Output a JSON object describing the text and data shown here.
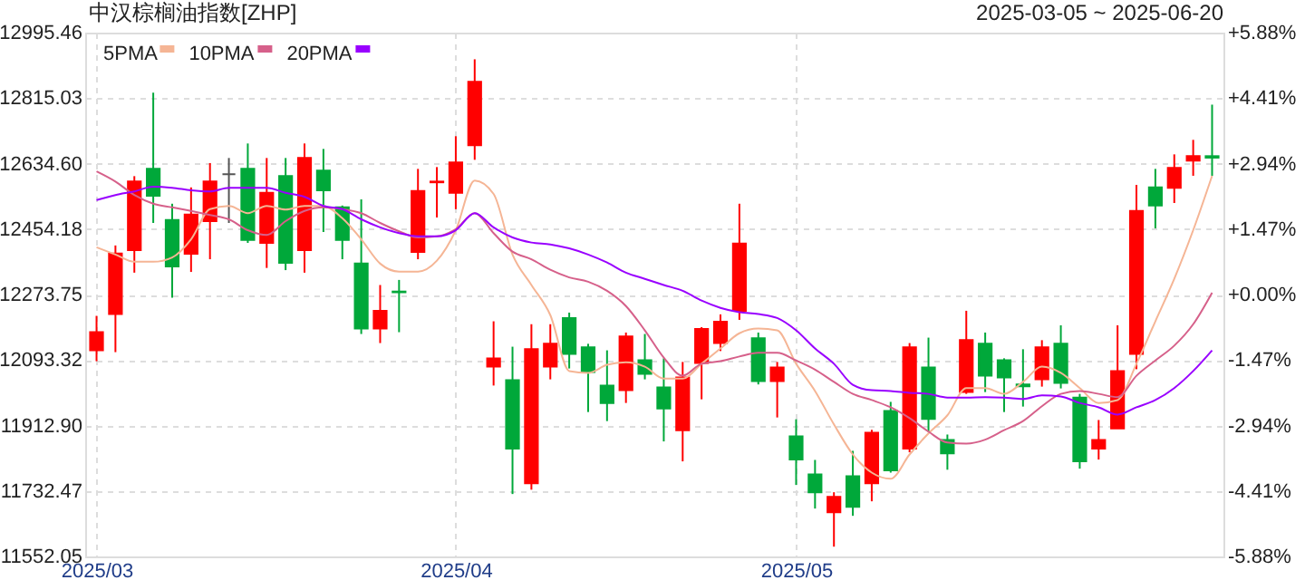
{
  "chart_data": {
    "type": "candlestick",
    "title": "中汉棕榈油指数[ZHP]",
    "subtitle": "2025-03-05 ~ 2025-06-20",
    "categories": [
      "2025/03",
      null,
      null,
      null,
      null,
      null,
      null,
      null,
      null,
      null,
      null,
      null,
      null,
      null,
      null,
      null,
      null,
      null,
      null,
      "2025/04",
      null,
      null,
      null,
      null,
      null,
      null,
      null,
      null,
      null,
      null,
      null,
      null,
      null,
      null,
      null,
      null,
      null,
      "2025/05",
      null,
      null,
      null,
      null,
      null,
      null,
      null,
      null,
      null,
      null,
      null,
      null,
      null,
      null,
      null,
      null,
      null,
      null,
      null,
      null,
      null,
      null
    ],
    "ohlc": [
      [
        12120,
        12215,
        12090,
        12170
      ],
      [
        12220,
        12409,
        12115,
        12387
      ],
      [
        12396,
        12600,
        12334,
        12585
      ],
      [
        12620,
        12830,
        12471,
        12546
      ],
      [
        12479,
        12524,
        12265,
        12351
      ],
      [
        12386,
        12569,
        12336,
        12494
      ],
      [
        12476,
        12636,
        12371,
        12585
      ],
      [
        12605,
        12650,
        12471,
        12605
      ],
      [
        12620,
        12690,
        12416,
        12424
      ],
      [
        12416,
        12650,
        12347,
        12554
      ],
      [
        12600,
        12650,
        12341,
        12361
      ],
      [
        12396,
        12690,
        12334,
        12650
      ],
      [
        12615,
        12675,
        12446,
        12561
      ],
      [
        12514,
        12519,
        12371,
        12424
      ],
      [
        12359,
        12536,
        12165,
        12180
      ],
      [
        12180,
        12300,
        12140,
        12229
      ],
      [
        12282,
        12314,
        12170,
        12280
      ],
      [
        12391,
        12620,
        12371,
        12559
      ],
      [
        12583,
        12625,
        12486,
        12585
      ],
      [
        12554,
        12710,
        12509,
        12638
      ],
      [
        12685,
        12922,
        12645,
        12860
      ],
      [
        12075,
        12200,
        12023,
        12098
      ],
      [
        12038,
        12130,
        11724,
        11849
      ],
      [
        11754,
        12192,
        11736,
        12123
      ],
      [
        12075,
        12192,
        12040,
        12138
      ],
      [
        12209,
        12224,
        12070,
        12110
      ],
      [
        12128,
        12138,
        11950,
        12060
      ],
      [
        12023,
        12120,
        11925,
        11975
      ],
      [
        12010,
        12169,
        11975,
        12158
      ],
      [
        12093,
        12165,
        12040,
        12055
      ],
      [
        12018,
        12098,
        11869,
        11960
      ],
      [
        11900,
        12088,
        11814,
        12045
      ],
      [
        12085,
        12184,
        11985,
        12179
      ],
      [
        12140,
        12219,
        12118,
        12199
      ],
      [
        12229,
        12524,
        12204,
        12414
      ],
      [
        12153,
        12169,
        12026,
        12035
      ],
      [
        12035,
        12088,
        11935,
        12073
      ],
      [
        11883,
        11930,
        11749,
        11819
      ],
      [
        11778,
        11818,
        11684,
        11729
      ],
      [
        11674,
        11729,
        11579,
        11716
      ],
      [
        11773,
        11843,
        11664,
        11689
      ],
      [
        11754,
        11901,
        11704,
        11893
      ],
      [
        11953,
        11978,
        11783,
        11789
      ],
      [
        11849,
        12140,
        11839,
        12128
      ],
      [
        12073,
        12155,
        11895,
        11931
      ],
      [
        11873,
        11888,
        11791,
        11836
      ],
      [
        12005,
        12229,
        12000,
        12148
      ],
      [
        12138,
        12169,
        12005,
        12050
      ],
      [
        12093,
        12098,
        11950,
        12045
      ],
      [
        12026,
        12123,
        11965,
        12021
      ],
      [
        12040,
        12148,
        12020,
        12128
      ],
      [
        12138,
        12189,
        12015,
        12030
      ],
      [
        11990,
        12000,
        11794,
        11814
      ],
      [
        11849,
        11928,
        11819,
        11873
      ],
      [
        11905,
        12189,
        11905,
        12063
      ],
      [
        12110,
        12576,
        12068,
        12504
      ],
      [
        12569,
        12620,
        12456,
        12519
      ],
      [
        12568,
        12660,
        12526,
        12623
      ],
      [
        12643,
        12700,
        12601,
        12655
      ],
      [
        12655,
        12797,
        12601,
        12651
      ]
    ],
    "colors": [
      "#ff0000",
      "#ff0000",
      "#ff0000",
      "#00a83a",
      "#00a83a",
      "#ff0000",
      "#ff0000",
      "#555555",
      "#00a83a",
      "#ff0000",
      "#00a83a",
      "#ff0000",
      "#00a83a",
      "#00a83a",
      "#00a83a",
      "#ff0000",
      "#00a83a",
      "#ff0000",
      "#ff0000",
      "#ff0000",
      "#ff0000",
      "#ff0000",
      "#00a83a",
      "#ff0000",
      "#ff0000",
      "#00a83a",
      "#00a83a",
      "#00a83a",
      "#ff0000",
      "#00a83a",
      "#00a83a",
      "#ff0000",
      "#ff0000",
      "#ff0000",
      "#ff0000",
      "#00a83a",
      "#ff0000",
      "#00a83a",
      "#00a83a",
      "#ff0000",
      "#00a83a",
      "#ff0000",
      "#00a83a",
      "#ff0000",
      "#00a83a",
      "#00a83a",
      "#ff0000",
      "#00a83a",
      "#00a83a",
      "#00a83a",
      "#ff0000",
      "#00a83a",
      "#00a83a",
      "#ff0000",
      "#ff0000",
      "#ff0000",
      "#00a83a",
      "#ff0000",
      "#ff0000",
      "#00a83a"
    ],
    "series": [
      {
        "name": "5PMA",
        "type": "line",
        "color": "#f5b595",
        "values": [
          12404,
          12384,
          12364,
          12364,
          12376,
          12426,
          12509,
          12518,
          12498,
          12518,
          12508,
          12518,
          12518,
          12484,
          12426,
          12359,
          12337,
          12337,
          12367,
          12451,
          12588,
          12551,
          12384,
          12300,
          12217,
          12063,
          12058,
          12080,
          12087,
          12075,
          12042,
          12042,
          12083,
          12125,
          12167,
          12180,
          12175,
          12083,
          12008,
          11916,
          11833,
          11783,
          11766,
          11833,
          11891,
          11941,
          12016,
          12016,
          12000,
          12033,
          12075,
          12058,
          12016,
          11975,
          11983,
          12083,
          12200,
          12317,
          12451,
          12601
        ]
      },
      {
        "name": "10PMA",
        "type": "line",
        "color": "#d6608a",
        "values": [
          12613,
          12585,
          12548,
          12524,
          12514,
          12504,
          12493,
          12481,
          12451,
          12438,
          12476,
          12504,
          12514,
          12509,
          12498,
          12471,
          12448,
          12431,
          12434,
          12454,
          12498,
          12443,
          12392,
          12371,
          12342,
          12321,
          12309,
          12284,
          12242,
          12175,
          12100,
          12050,
          12083,
          12090,
          12103,
          12113,
          12113,
          12092,
          12067,
          12033,
          12000,
          11983,
          11963,
          11933,
          11896,
          11866,
          11863,
          11874,
          11900,
          11925,
          11966,
          12000,
          12008,
          12000,
          11991,
          12050,
          12092,
          12133,
          12192,
          12279
        ]
      },
      {
        "name": "20PMA",
        "type": "line",
        "color": "#9900ff",
        "values": [
          12534,
          12548,
          12558,
          12571,
          12568,
          12561,
          12558,
          12568,
          12568,
          12568,
          12554,
          12543,
          12518,
          12509,
          12481,
          12459,
          12443,
          12434,
          12434,
          12451,
          12498,
          12459,
          12431,
          12417,
          12412,
          12401,
          12384,
          12362,
          12334,
          12317,
          12300,
          12284,
          12257,
          12237,
          12225,
          12220,
          12209,
          12175,
          12125,
          12083,
          12025,
          12010,
          12008,
          12003,
          12000,
          11990,
          11990,
          11991,
          11990,
          11986,
          11996,
          11993,
          11975,
          11963,
          11943,
          11963,
          11983,
          12016,
          12063,
          12120
        ]
      }
    ],
    "ylim": [
      11552.05,
      12995.46
    ],
    "yticks": [
      11552.05,
      11732.47,
      {
        "value": 11912.9,
        "label": "11912.90"
      },
      12093.32,
      12273.75,
      12454.18,
      {
        "value": 12634.6,
        "label": "12634.60"
      },
      12815.03,
      12995.46
    ],
    "y2lim": [
      -5.88,
      5.88
    ],
    "y2ticks": [
      {
        "value": 5.88,
        "label": "+5.88%"
      },
      {
        "value": 4.41,
        "label": "+4.41%"
      },
      {
        "value": 2.94,
        "label": "+2.94%"
      },
      {
        "value": 1.47,
        "label": "+1.47%"
      },
      {
        "value": 0,
        "label": "+0.00%"
      },
      {
        "value": -1.47,
        "label": "-1.47%"
      },
      {
        "value": -2.94,
        "label": "-2.94%"
      },
      {
        "value": -4.41,
        "label": "-4.41%"
      },
      {
        "value": -5.88,
        "label": "-5.88%"
      }
    ],
    "grid": true,
    "legend": "top left"
  }
}
